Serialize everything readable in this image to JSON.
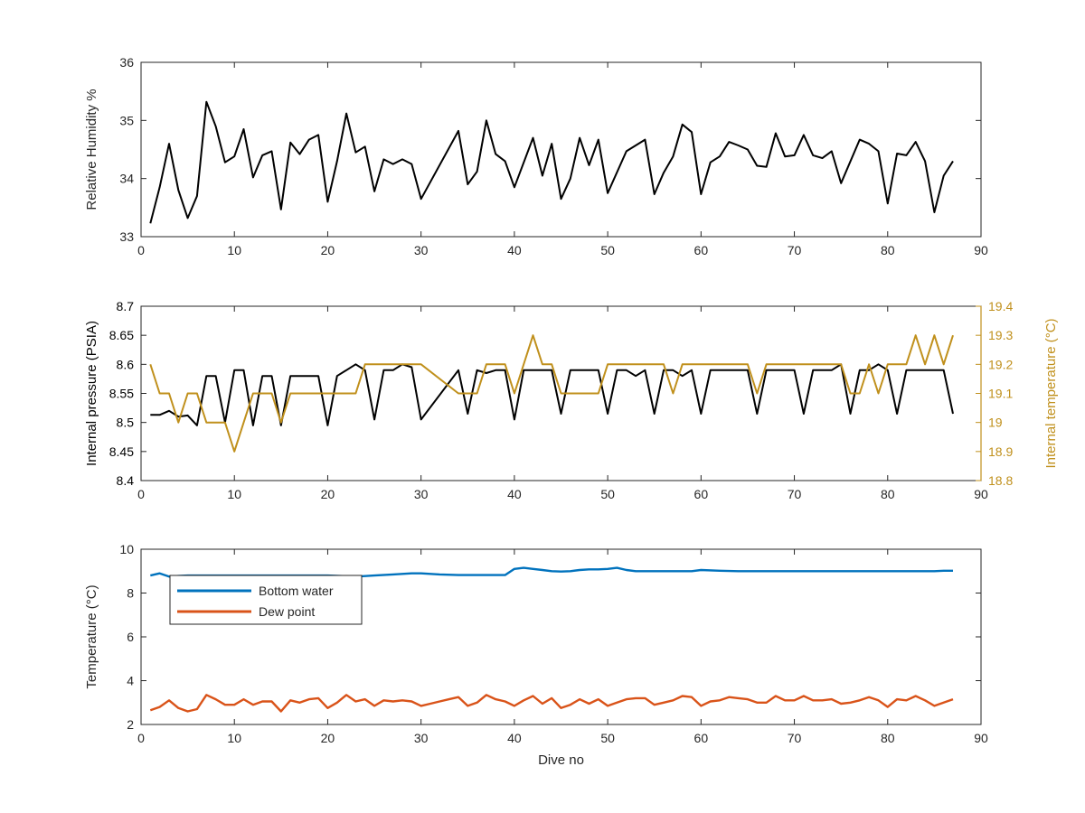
{
  "chart_data": [
    {
      "type": "line",
      "xlabel": "",
      "ylabel": "Relative Humidity %",
      "xlim": [
        0,
        90
      ],
      "ylim": [
        33,
        36
      ],
      "xticks": [
        0,
        10,
        20,
        30,
        40,
        50,
        60,
        70,
        80,
        90
      ],
      "yticks": [
        33,
        34,
        35,
        36
      ],
      "grid": false,
      "series": [
        {
          "color": "#000000",
          "x": [
            1,
            2,
            3,
            4,
            5,
            6,
            7,
            8,
            9,
            10,
            11,
            12,
            13,
            14,
            15,
            16,
            17,
            18,
            19,
            20,
            21,
            22,
            23,
            24,
            25,
            26,
            27,
            28,
            29,
            30,
            34,
            35,
            36,
            37,
            38,
            39,
            40,
            42,
            43,
            44,
            45,
            46,
            47,
            48,
            49,
            50,
            52,
            54,
            55,
            56,
            57,
            58,
            59,
            60,
            61,
            62,
            63,
            64,
            65,
            66,
            67,
            68,
            69,
            70,
            71,
            72,
            73,
            74,
            75,
            77,
            78,
            79,
            80,
            81,
            82,
            83,
            84,
            85,
            86,
            87
          ],
          "y": [
            33.23,
            33.85,
            34.6,
            33.8,
            33.32,
            33.7,
            35.32,
            34.9,
            34.28,
            34.38,
            34.85,
            34.02,
            34.4,
            34.47,
            33.47,
            34.62,
            34.42,
            34.67,
            34.75,
            33.6,
            34.3,
            35.12,
            34.45,
            34.55,
            33.78,
            34.33,
            34.25,
            34.33,
            34.25,
            33.65,
            34.82,
            33.9,
            34.12,
            35.0,
            34.42,
            34.3,
            33.85,
            34.7,
            34.05,
            34.6,
            33.65,
            34.0,
            34.7,
            34.23,
            34.67,
            33.75,
            34.47,
            34.67,
            33.73,
            34.1,
            34.38,
            34.93,
            34.8,
            33.73,
            34.28,
            34.38,
            34.63,
            34.57,
            34.5,
            34.22,
            34.2,
            34.78,
            34.38,
            34.4,
            34.75,
            34.4,
            34.35,
            34.47,
            33.92,
            34.67,
            34.6,
            34.47,
            33.57,
            34.43,
            34.4,
            34.63,
            34.3,
            33.42,
            34.05,
            34.3
          ]
        }
      ]
    },
    {
      "type": "line",
      "xlabel": "",
      "ylabel": "Internal pressure (PSIA)",
      "y2label": "Internal temperature (°C)",
      "xlim": [
        0,
        90
      ],
      "ylim": [
        8.4,
        8.7
      ],
      "y2lim": [
        18.8,
        19.4
      ],
      "xticks": [
        0,
        10,
        20,
        30,
        40,
        50,
        60,
        70,
        80,
        90
      ],
      "yticks": [
        8.4,
        8.45,
        8.5,
        8.55,
        8.6,
        8.65,
        8.7
      ],
      "y2ticks": [
        18.8,
        18.9,
        19,
        19.1,
        19.2,
        19.3,
        19.4
      ],
      "grid": false,
      "series": [
        {
          "axis": "left",
          "color": "#000000",
          "x": [
            1,
            2,
            3,
            4,
            5,
            6,
            7,
            8,
            9,
            10,
            11,
            12,
            13,
            14,
            15,
            16,
            17,
            18,
            19,
            20,
            21,
            22,
            23,
            24,
            25,
            26,
            27,
            28,
            29,
            30,
            34,
            35,
            36,
            37,
            38,
            39,
            40,
            41,
            42,
            43,
            44,
            45,
            46,
            47,
            48,
            49,
            50,
            51,
            52,
            53,
            54,
            55,
            56,
            57,
            58,
            59,
            60,
            61,
            62,
            63,
            64,
            65,
            66,
            67,
            68,
            69,
            70,
            71,
            72,
            73,
            74,
            75,
            76,
            77,
            78,
            79,
            80,
            81,
            82,
            83,
            84,
            85,
            86,
            87
          ],
          "y": [
            8.513,
            8.513,
            8.52,
            8.51,
            8.512,
            8.495,
            8.58,
            8.58,
            8.5,
            8.59,
            8.59,
            8.495,
            8.58,
            8.58,
            8.495,
            8.58,
            8.58,
            8.58,
            8.58,
            8.495,
            8.58,
            8.59,
            8.6,
            8.59,
            8.505,
            8.59,
            8.59,
            8.6,
            8.595,
            8.505,
            8.59,
            8.515,
            8.59,
            8.585,
            8.59,
            8.59,
            8.505,
            8.59,
            8.59,
            8.59,
            8.59,
            8.515,
            8.59,
            8.59,
            8.59,
            8.59,
            8.515,
            8.59,
            8.59,
            8.58,
            8.59,
            8.515,
            8.59,
            8.59,
            8.58,
            8.59,
            8.515,
            8.59,
            8.59,
            8.59,
            8.59,
            8.59,
            8.515,
            8.59,
            8.59,
            8.59,
            8.59,
            8.515,
            8.59,
            8.59,
            8.59,
            8.6,
            8.515,
            8.59,
            8.59,
            8.6,
            8.59,
            8.515,
            8.59,
            8.59,
            8.59,
            8.59,
            8.59,
            8.515
          ]
        },
        {
          "axis": "right",
          "color": "#c0901c",
          "x": [
            1,
            2,
            3,
            4,
            5,
            6,
            7,
            8,
            9,
            10,
            11,
            12,
            13,
            14,
            15,
            16,
            17,
            18,
            19,
            20,
            21,
            22,
            23,
            24,
            25,
            26,
            27,
            28,
            29,
            30,
            34,
            35,
            36,
            37,
            38,
            39,
            40,
            41,
            42,
            43,
            44,
            45,
            46,
            47,
            48,
            49,
            50,
            51,
            52,
            53,
            54,
            55,
            56,
            57,
            58,
            59,
            60,
            61,
            62,
            63,
            64,
            65,
            66,
            67,
            68,
            69,
            70,
            71,
            72,
            73,
            74,
            75,
            76,
            77,
            78,
            79,
            80,
            81,
            82,
            83,
            84,
            85,
            86,
            87
          ],
          "y": [
            19.2,
            19.1,
            19.1,
            19.0,
            19.1,
            19.1,
            19.0,
            19.0,
            19.0,
            18.9,
            19.0,
            19.1,
            19.1,
            19.1,
            19.0,
            19.1,
            19.1,
            19.1,
            19.1,
            19.1,
            19.1,
            19.1,
            19.1,
            19.2,
            19.2,
            19.2,
            19.2,
            19.2,
            19.2,
            19.2,
            19.1,
            19.1,
            19.1,
            19.2,
            19.2,
            19.2,
            19.1,
            19.2,
            19.3,
            19.2,
            19.2,
            19.1,
            19.1,
            19.1,
            19.1,
            19.1,
            19.2,
            19.2,
            19.2,
            19.2,
            19.2,
            19.2,
            19.2,
            19.1,
            19.2,
            19.2,
            19.2,
            19.2,
            19.2,
            19.2,
            19.2,
            19.2,
            19.1,
            19.2,
            19.2,
            19.2,
            19.2,
            19.2,
            19.2,
            19.2,
            19.2,
            19.2,
            19.1,
            19.1,
            19.2,
            19.1,
            19.2,
            19.2,
            19.2,
            19.3,
            19.2,
            19.3,
            19.2,
            19.3
          ]
        }
      ]
    },
    {
      "type": "line",
      "xlabel": "Dive no",
      "ylabel": "Temperature (°C)",
      "xlim": [
        0,
        90
      ],
      "ylim": [
        2,
        10
      ],
      "xticks": [
        0,
        10,
        20,
        30,
        40,
        50,
        60,
        70,
        80,
        90
      ],
      "yticks": [
        2,
        4,
        6,
        8,
        10
      ],
      "grid": false,
      "legend": "top-left",
      "series": [
        {
          "name": "Bottom water",
          "color": "#0072bd",
          "x": [
            1,
            2,
            3,
            4,
            5,
            10,
            15,
            20,
            23,
            25,
            27,
            29,
            30,
            32,
            34,
            36,
            38,
            39,
            40,
            41,
            42,
            43,
            44,
            45,
            46,
            47,
            48,
            49,
            50,
            51,
            52,
            53,
            55,
            57,
            59,
            60,
            62,
            64,
            66,
            67,
            70,
            75,
            80,
            85,
            86,
            87
          ],
          "y": [
            8.8,
            8.9,
            8.75,
            8.78,
            8.8,
            8.8,
            8.8,
            8.8,
            8.75,
            8.8,
            8.85,
            8.9,
            8.9,
            8.85,
            8.82,
            8.82,
            8.82,
            8.82,
            9.1,
            9.15,
            9.1,
            9.05,
            9.0,
            8.98,
            9.0,
            9.05,
            9.08,
            9.08,
            9.1,
            9.15,
            9.05,
            9.0,
            9.0,
            9.0,
            9.0,
            9.05,
            9.02,
            9.0,
            9.0,
            9.0,
            9.0,
            9.0,
            9.0,
            9.0,
            9.02,
            9.02
          ]
        },
        {
          "name": "Dew point",
          "color": "#d95319",
          "x": [
            1,
            2,
            3,
            4,
            5,
            6,
            7,
            8,
            9,
            10,
            11,
            12,
            13,
            14,
            15,
            16,
            17,
            18,
            19,
            20,
            21,
            22,
            23,
            24,
            25,
            26,
            27,
            28,
            29,
            30,
            31,
            32,
            33,
            34,
            35,
            36,
            37,
            38,
            39,
            40,
            41,
            42,
            43,
            44,
            45,
            46,
            47,
            48,
            49,
            50,
            51,
            52,
            53,
            54,
            55,
            56,
            57,
            58,
            59,
            60,
            61,
            62,
            63,
            64,
            65,
            66,
            67,
            68,
            69,
            70,
            71,
            72,
            73,
            74,
            75,
            76,
            77,
            78,
            79,
            80,
            81,
            82,
            83,
            84,
            85,
            86,
            87
          ],
          "y": [
            2.65,
            2.8,
            3.1,
            2.75,
            2.6,
            2.7,
            3.35,
            3.15,
            2.9,
            2.9,
            3.15,
            2.9,
            3.05,
            3.05,
            2.6,
            3.1,
            3.0,
            3.15,
            3.2,
            2.75,
            3.0,
            3.35,
            3.05,
            3.15,
            2.85,
            3.1,
            3.05,
            3.1,
            3.05,
            2.85,
            2.95,
            3.05,
            3.15,
            3.25,
            2.85,
            3.0,
            3.35,
            3.15,
            3.05,
            2.85,
            3.1,
            3.3,
            2.95,
            3.2,
            2.75,
            2.9,
            3.15,
            2.95,
            3.15,
            2.85,
            3.0,
            3.15,
            3.2,
            3.2,
            2.9,
            3.0,
            3.1,
            3.3,
            3.25,
            2.85,
            3.05,
            3.1,
            3.25,
            3.2,
            3.15,
            3.0,
            3.0,
            3.3,
            3.1,
            3.1,
            3.3,
            3.1,
            3.1,
            3.15,
            2.95,
            3.0,
            3.1,
            3.25,
            3.1,
            2.8,
            3.15,
            3.1,
            3.3,
            3.1,
            2.85,
            3.0,
            3.15
          ]
        }
      ]
    }
  ]
}
